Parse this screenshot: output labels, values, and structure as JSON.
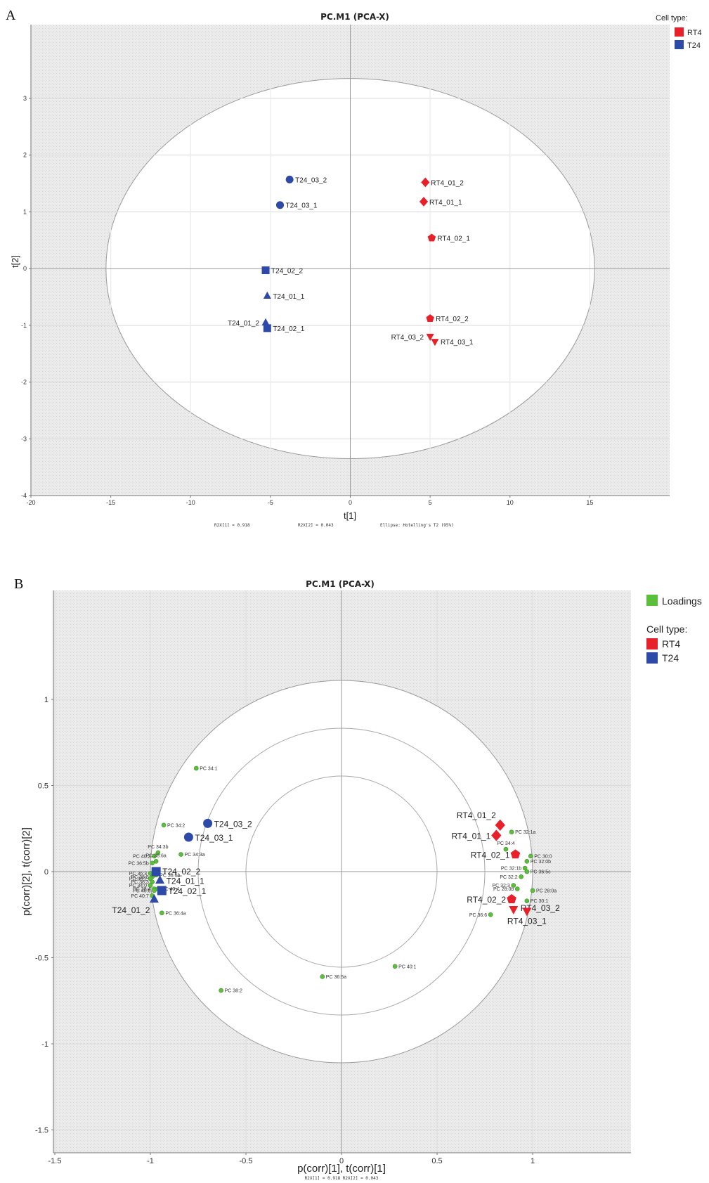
{
  "colors": {
    "RT4": "#e8202a",
    "T24": "#2e4aa8",
    "loadings": "#5cbf3c"
  },
  "chart_data": [
    {
      "panel": "A",
      "type": "scatter",
      "title": "PC.M1 (PCA-X)",
      "xlabel": "t[1]",
      "ylabel": "t[2]",
      "xlim": [
        -20,
        20
      ],
      "ylim": [
        -4,
        4.3
      ],
      "xticks": [
        -20,
        -15,
        -10,
        -5,
        0,
        5,
        10,
        15
      ],
      "yticks": [
        -4,
        -3,
        -2,
        -1,
        0,
        1,
        2,
        3
      ],
      "footer": [
        "R2X[1] = 0.918",
        "R2X[2] = 0.043",
        "Ellipse: Hotelling's T2 (95%)"
      ],
      "ellipse": {
        "rx": 15.3,
        "ry": 3.35
      },
      "legend": {
        "title": "Cell type:",
        "entries": [
          "RT4",
          "T24"
        ]
      },
      "points": [
        {
          "label": "T24_03_2",
          "x": -3.8,
          "y": 1.57,
          "group": "T24",
          "marker": "circle"
        },
        {
          "label": "T24_03_1",
          "x": -4.4,
          "y": 1.12,
          "group": "T24",
          "marker": "circle"
        },
        {
          "label": "T24_02_2",
          "x": -5.3,
          "y": -0.03,
          "group": "T24",
          "marker": "square"
        },
        {
          "label": "T24_01_1",
          "x": -5.2,
          "y": -0.48,
          "group": "T24",
          "marker": "triangle"
        },
        {
          "label": "T24_01_2",
          "x": -5.3,
          "y": -0.95,
          "group": "T24",
          "marker": "triangle"
        },
        {
          "label": "T24_02_1",
          "x": -5.2,
          "y": -1.05,
          "group": "T24",
          "marker": "square"
        },
        {
          "label": "RT4_01_2",
          "x": 4.7,
          "y": 1.52,
          "group": "RT4",
          "marker": "diamond"
        },
        {
          "label": "RT4_01_1",
          "x": 4.6,
          "y": 1.18,
          "group": "RT4",
          "marker": "diamond"
        },
        {
          "label": "RT4_02_1",
          "x": 5.1,
          "y": 0.54,
          "group": "RT4",
          "marker": "pentagon"
        },
        {
          "label": "RT4_02_2",
          "x": 5.0,
          "y": -0.88,
          "group": "RT4",
          "marker": "pentagon"
        },
        {
          "label": "RT4_03_2",
          "x": 5.0,
          "y": -1.2,
          "group": "RT4",
          "marker": "tridown"
        },
        {
          "label": "RT4_03_1",
          "x": 5.3,
          "y": -1.29,
          "group": "RT4",
          "marker": "tridown"
        }
      ]
    },
    {
      "panel": "B",
      "type": "scatter",
      "title": "PC.M1 (PCA-X)",
      "xlabel": "p(corr)[1], t(corr)[1]",
      "ylabel": "p(corr)[2], t(corr)[2]",
      "xlim": [
        -1.5,
        1.5
      ],
      "ylim": [
        -1.5,
        1.5
      ],
      "xticks": [
        -1.5,
        -1,
        -0.5,
        0,
        0.5,
        1
      ],
      "yticks": [
        -1.5,
        -1,
        -0.5,
        0,
        0.5,
        1
      ],
      "footer": [
        "R2X[1] = 0.918 R2X[2] = 0.043"
      ],
      "circles": [
        1.0,
        0.75,
        0.5
      ],
      "legend": {
        "loadings": "Loadings",
        "title": "Cell type:",
        "entries": [
          "RT4",
          "T24"
        ]
      },
      "scores": [
        {
          "label": "T24_03_2",
          "x": -0.7,
          "y": 0.28,
          "group": "T24",
          "marker": "circle"
        },
        {
          "label": "T24_03_1",
          "x": -0.8,
          "y": 0.2,
          "group": "T24",
          "marker": "circle"
        },
        {
          "label": "T24_02_2",
          "x": -0.97,
          "y": 0.0,
          "group": "T24",
          "marker": "square"
        },
        {
          "label": "T24_01_1",
          "x": -0.95,
          "y": -0.05,
          "group": "T24",
          "marker": "triangle"
        },
        {
          "label": "T24_02_1",
          "x": -0.94,
          "y": -0.11,
          "group": "T24",
          "marker": "square"
        },
        {
          "label": "T24_01_2",
          "x": -0.98,
          "y": -0.16,
          "group": "T24",
          "marker": "triangle"
        },
        {
          "label": "RT4_01_2",
          "x": 0.83,
          "y": 0.27,
          "group": "RT4",
          "marker": "diamond"
        },
        {
          "label": "RT4_01_1",
          "x": 0.81,
          "y": 0.21,
          "group": "RT4",
          "marker": "diamond"
        },
        {
          "label": "RT4_02_1",
          "x": 0.91,
          "y": 0.1,
          "group": "RT4",
          "marker": "pentagon"
        },
        {
          "label": "RT4_02_2",
          "x": 0.89,
          "y": -0.16,
          "group": "RT4",
          "marker": "pentagon"
        },
        {
          "label": "RT4_03_2",
          "x": 0.9,
          "y": -0.22,
          "group": "RT4",
          "marker": "tridown"
        },
        {
          "label": "RT4_03_1",
          "x": 0.97,
          "y": -0.23,
          "group": "RT4",
          "marker": "tridown"
        }
      ],
      "loadings": [
        {
          "label": "PC 34:1",
          "x": -0.76,
          "y": 0.6
        },
        {
          "label": "PC 34:2",
          "x": -0.93,
          "y": 0.27
        },
        {
          "label": "PC 34:3b",
          "x": -0.96,
          "y": 0.11
        },
        {
          "label": "PC 34:3a",
          "x": -0.84,
          "y": 0.1
        },
        {
          "label": "PC 40:2",
          "x": -0.98,
          "y": 0.09
        },
        {
          "label": "PC 36:5b",
          "x": -0.99,
          "y": 0.05
        },
        {
          "label": "PC 38:6a",
          "x": -0.97,
          "y": 0.06
        },
        {
          "label": "PC 36:3",
          "x": -1.0,
          "y": -0.01
        },
        {
          "label": "PC 38:5",
          "x": -0.99,
          "y": -0.03
        },
        {
          "label": "PC 36:2",
          "x": -1.0,
          "y": -0.04
        },
        {
          "label": "PC 38:3",
          "x": -0.99,
          "y": -0.06
        },
        {
          "label": "PC 34:0",
          "x": -1.0,
          "y": -0.08
        },
        {
          "label": "PC 38:4",
          "x": -0.98,
          "y": -0.1
        },
        {
          "label": "PC 40:6",
          "x": -0.98,
          "y": -0.11
        },
        {
          "label": "PC 40:7",
          "x": -0.99,
          "y": -0.14
        },
        {
          "label": "PC 38:6b",
          "x": -0.97,
          "y": -0.02
        },
        {
          "label": "PC 40:4",
          "x": -0.96,
          "y": -0.1
        },
        {
          "label": "PC 36:4a",
          "x": -0.94,
          "y": -0.24
        },
        {
          "label": "PC 36:5a",
          "x": -0.1,
          "y": -0.61
        },
        {
          "label": "PC 38:2",
          "x": -0.63,
          "y": -0.69
        },
        {
          "label": "PC 40:1",
          "x": 0.28,
          "y": -0.55
        },
        {
          "label": "PC 32:1a",
          "x": 0.89,
          "y": 0.23
        },
        {
          "label": "PC 34:4",
          "x": 0.86,
          "y": 0.13
        },
        {
          "label": "PC 30:0",
          "x": 0.99,
          "y": 0.09
        },
        {
          "label": "PC 32:0b",
          "x": 0.97,
          "y": 0.06
        },
        {
          "label": "PC 32:1b",
          "x": 0.96,
          "y": 0.02
        },
        {
          "label": "PC 36:5c",
          "x": 0.97,
          "y": 0.0
        },
        {
          "label": "PC 32:2",
          "x": 0.94,
          "y": -0.03
        },
        {
          "label": "PC 32:3",
          "x": 0.9,
          "y": -0.08
        },
        {
          "label": "PC 28:0b",
          "x": 0.92,
          "y": -0.1
        },
        {
          "label": "PC 28:0a",
          "x": 1.0,
          "y": -0.11
        },
        {
          "label": "PC 30:1",
          "x": 0.97,
          "y": -0.17
        },
        {
          "label": "PC 36:6",
          "x": 0.78,
          "y": -0.25
        }
      ]
    }
  ]
}
